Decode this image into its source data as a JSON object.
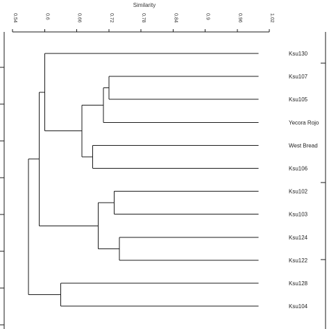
{
  "chart_data": {
    "type": "dendrogram",
    "xlabel": "Similarity",
    "xlim": [
      0.54,
      1.02
    ],
    "x_ticks": [
      0.54,
      0.6,
      0.66,
      0.72,
      0.78,
      0.84,
      0.9,
      0.96,
      1.02
    ],
    "x_tick_labels": [
      "0.54",
      "0.6",
      "0.66",
      "0.72",
      "0.78",
      "0.84",
      "0.9",
      "0.96",
      "1.02"
    ],
    "leaves": [
      "Ksu130",
      "Ksu107",
      "Ksu105",
      "Yecora Rojo",
      "West Bread",
      "Ksu106",
      "Ksu102",
      "Ksu103",
      "Ksu124",
      "Ksu122",
      "Ksu128",
      "Ksu104"
    ],
    "merges": [
      {
        "id": "c1",
        "children": [
          "Ksu107",
          "Ksu105"
        ],
        "similarity": 0.72
      },
      {
        "id": "c2",
        "children": [
          "c1",
          "Yecora Rojo"
        ],
        "similarity": 0.71
      },
      {
        "id": "c3",
        "children": [
          "West Bread",
          "Ksu106"
        ],
        "similarity": 0.69
      },
      {
        "id": "c4",
        "children": [
          "c2",
          "c3"
        ],
        "similarity": 0.67
      },
      {
        "id": "c5",
        "children": [
          "Ksu130",
          "c4"
        ],
        "similarity": 0.6
      },
      {
        "id": "c6",
        "children": [
          "Ksu102",
          "Ksu103"
        ],
        "similarity": 0.73
      },
      {
        "id": "c7",
        "children": [
          "Ksu124",
          "Ksu122"
        ],
        "similarity": 0.74
      },
      {
        "id": "c8",
        "children": [
          "c6",
          "c7"
        ],
        "similarity": 0.7
      },
      {
        "id": "c9",
        "children": [
          "c5",
          "c8"
        ],
        "similarity": 0.59
      },
      {
        "id": "c10",
        "children": [
          "Ksu128",
          "Ksu104"
        ],
        "similarity": 0.63
      },
      {
        "id": "c11",
        "children": [
          "c9",
          "c10"
        ],
        "similarity": 0.57
      }
    ],
    "leaf_similarity": 1.0
  }
}
